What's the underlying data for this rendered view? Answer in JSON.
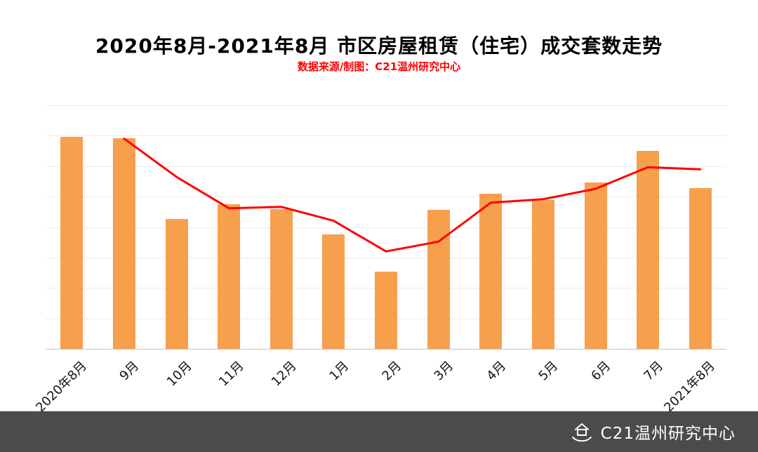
{
  "header": {
    "title": "2020年8月-2021年8月 市区房屋租赁（住宅）成交套数走势",
    "subtitle": "数据来源/制图：C21温州研究中心"
  },
  "chart_data": {
    "type": "bar",
    "title": "2020年8月-2021年8月 市区房屋租赁（住宅）成交套数走势",
    "categories": [
      "2020年8月",
      "9月",
      "10月",
      "11月",
      "12月",
      "1月",
      "2月",
      "3月",
      "4月",
      "5月",
      "6月",
      "7月",
      "2021年8月"
    ],
    "series": [
      {
        "name": "成交套数",
        "type": "bar",
        "color": "#F6A04D",
        "values": [
          305,
          303,
          187,
          208,
          201,
          164,
          111,
          200,
          223,
          214,
          239,
          284,
          231
        ]
      },
      {
        "name": "走势线",
        "type": "line",
        "color": "#FF0000",
        "values": [
          null,
          302,
          247,
          202,
          204,
          184,
          140,
          154,
          210,
          215,
          230,
          261,
          258
        ]
      }
    ],
    "xlabel": "",
    "ylabel": "",
    "ylim": [
      0,
      350
    ],
    "grid": true,
    "legend": "none"
  },
  "footer": {
    "watermark": "C21温州研究中心",
    "icon": "hand-house-icon"
  },
  "colors": {
    "bar": "#F6A04D",
    "line": "#FF0000",
    "subtitle": "#FF0000",
    "footer_bg": "#4B4B4B",
    "gridline": "#EBEBEB"
  }
}
